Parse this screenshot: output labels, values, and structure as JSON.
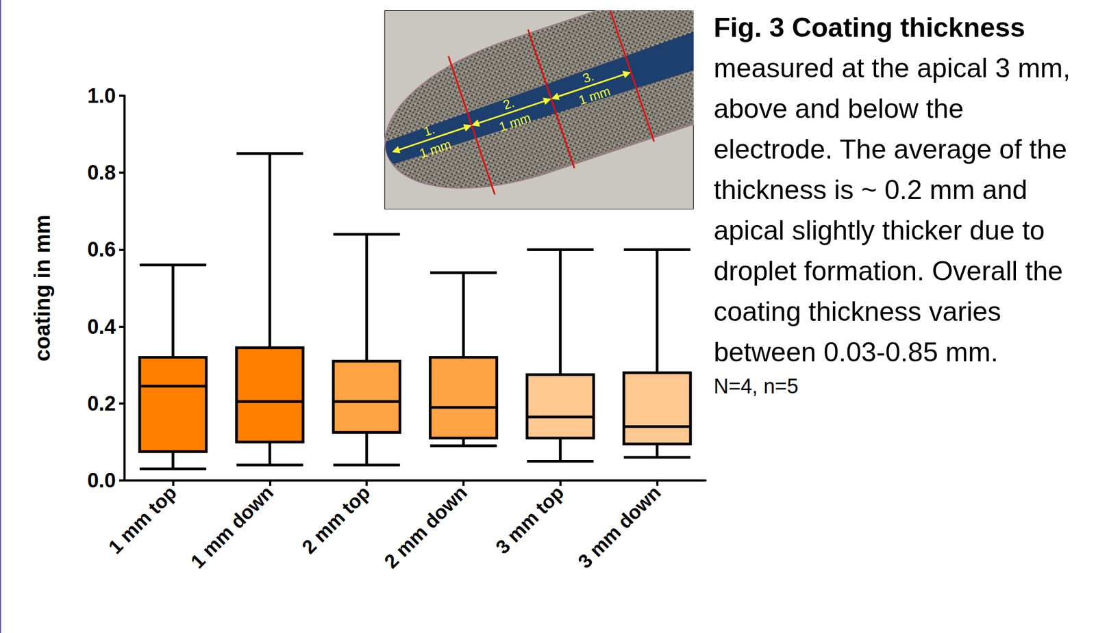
{
  "chart_data": {
    "type": "boxplot",
    "ylabel": "coating in mm",
    "categories": [
      "1 mm top",
      "1 mm down",
      "2 mm top",
      "2 mm down",
      "3 mm top",
      "3 mm down"
    ],
    "values": [
      [
        0.03,
        0.075,
        0.245,
        0.32,
        0.56
      ],
      [
        0.04,
        0.1,
        0.205,
        0.345,
        0.85
      ],
      [
        0.04,
        0.125,
        0.205,
        0.31,
        0.64
      ],
      [
        0.09,
        0.11,
        0.19,
        0.32,
        0.54
      ],
      [
        0.05,
        0.11,
        0.165,
        0.275,
        0.6
      ],
      [
        0.06,
        0.095,
        0.14,
        0.28,
        0.6
      ]
    ],
    "colors": [
      "#ff7f00",
      "#ff7f00",
      "#ffa345",
      "#ffa345",
      "#ffc890",
      "#ffc890"
    ],
    "ylim": [
      0,
      1
    ],
    "yticks": [
      {
        "value": 0,
        "label": "0.0"
      },
      0.2,
      0.4,
      0.6,
      0.8,
      {
        "value": 1,
        "label": "1.0"
      }
    ],
    "grid": false
  },
  "caption": {
    "title": "Fig. 3 Coating thickness",
    "text": "measured at the apical 3 mm, above and below the electrode. The average of the thickness is ~ 0.2 mm and apical slightly thicker due to droplet formation. Overall the coating thickness varies between 0.03-0.85 mm.",
    "note": "N=4, n=5"
  },
  "inset": {
    "segments": [
      {
        "number": "1.",
        "length": "1 mm"
      },
      {
        "number": "2.",
        "length": "1 mm"
      },
      {
        "number": "3.",
        "length": "1 mm"
      }
    ]
  }
}
